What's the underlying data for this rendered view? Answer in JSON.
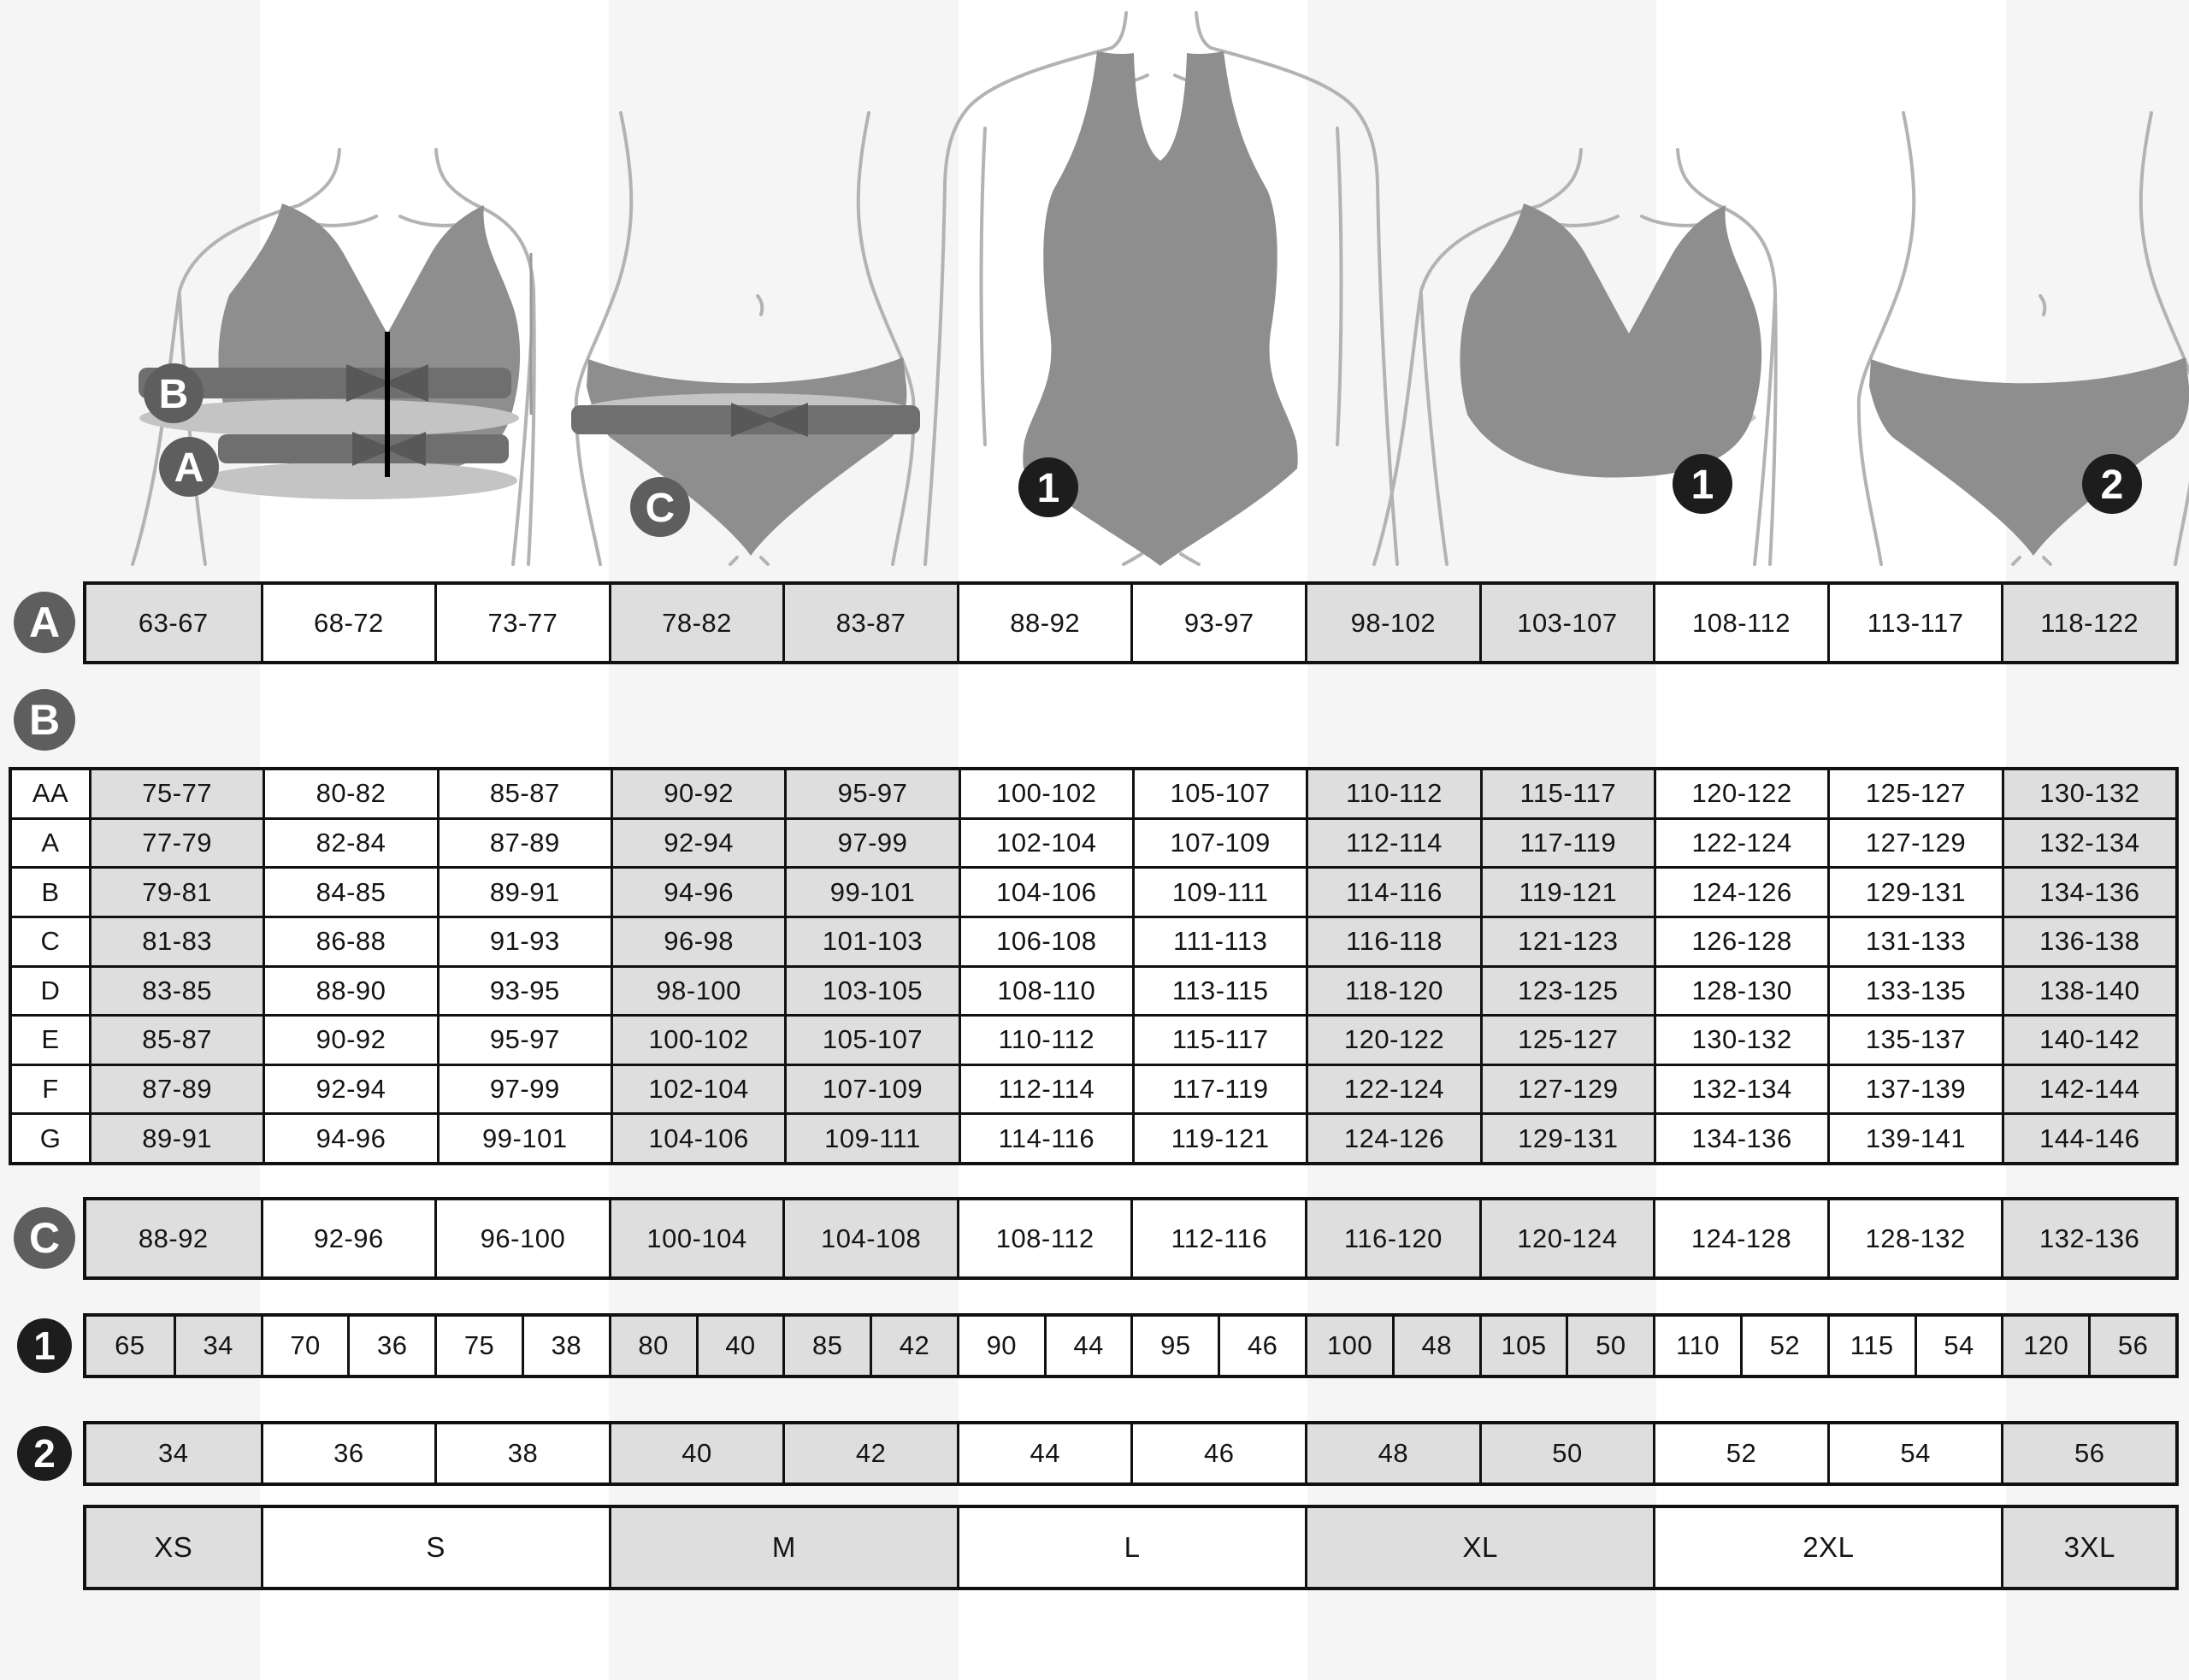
{
  "labels": {
    "a": "A",
    "b": "B",
    "c": "C",
    "n1": "1",
    "n2": "2"
  },
  "underbust_row": {
    "badge": "A",
    "values": [
      "63-67",
      "68-72",
      "73-77",
      "78-82",
      "83-87",
      "88-92",
      "93-97",
      "98-102",
      "103-107",
      "108-112",
      "113-117",
      "118-122"
    ]
  },
  "cup_table": {
    "badge": "B",
    "cups": [
      "AA",
      "A",
      "B",
      "C",
      "D",
      "E",
      "F",
      "G"
    ],
    "rows": [
      [
        "75-77",
        "80-82",
        "85-87",
        "90-92",
        "95-97",
        "100-102",
        "105-107",
        "110-112",
        "115-117",
        "120-122",
        "125-127",
        "130-132"
      ],
      [
        "77-79",
        "82-84",
        "87-89",
        "92-94",
        "97-99",
        "102-104",
        "107-109",
        "112-114",
        "117-119",
        "122-124",
        "127-129",
        "132-134"
      ],
      [
        "79-81",
        "84-85",
        "89-91",
        "94-96",
        "99-101",
        "104-106",
        "109-111",
        "114-116",
        "119-121",
        "124-126",
        "129-131",
        "134-136"
      ],
      [
        "81-83",
        "86-88",
        "91-93",
        "96-98",
        "101-103",
        "106-108",
        "111-113",
        "116-118",
        "121-123",
        "126-128",
        "131-133",
        "136-138"
      ],
      [
        "83-85",
        "88-90",
        "93-95",
        "98-100",
        "103-105",
        "108-110",
        "113-115",
        "118-120",
        "123-125",
        "128-130",
        "133-135",
        "138-140"
      ],
      [
        "85-87",
        "90-92",
        "95-97",
        "100-102",
        "105-107",
        "110-112",
        "115-117",
        "120-122",
        "125-127",
        "130-132",
        "135-137",
        "140-142"
      ],
      [
        "87-89",
        "92-94",
        "97-99",
        "102-104",
        "107-109",
        "112-114",
        "117-119",
        "122-124",
        "127-129",
        "132-134",
        "137-139",
        "142-144"
      ],
      [
        "89-91",
        "94-96",
        "99-101",
        "104-106",
        "109-111",
        "114-116",
        "119-121",
        "124-126",
        "129-131",
        "134-136",
        "139-141",
        "144-146"
      ]
    ]
  },
  "hip_row": {
    "badge": "C",
    "values": [
      "88-92",
      "92-96",
      "96-100",
      "100-104",
      "104-108",
      "108-112",
      "112-116",
      "116-120",
      "120-124",
      "124-128",
      "128-132",
      "132-136"
    ]
  },
  "band_cup_pairs_row": {
    "badge": "1",
    "pairs": [
      [
        "65",
        "34"
      ],
      [
        "70",
        "36"
      ],
      [
        "75",
        "38"
      ],
      [
        "80",
        "40"
      ],
      [
        "85",
        "42"
      ],
      [
        "90",
        "44"
      ],
      [
        "95",
        "46"
      ],
      [
        "100",
        "48"
      ],
      [
        "105",
        "50"
      ],
      [
        "110",
        "52"
      ],
      [
        "115",
        "54"
      ],
      [
        "120",
        "56"
      ]
    ]
  },
  "dress_size_row": {
    "badge": "2",
    "values": [
      "34",
      "36",
      "38",
      "40",
      "42",
      "44",
      "46",
      "48",
      "50",
      "52",
      "54",
      "56"
    ]
  },
  "intl_size_row": {
    "values": [
      "XS",
      "S",
      "M",
      "L",
      "XL",
      "2XL",
      "3XL"
    ],
    "spans": [
      1,
      2,
      2,
      2,
      2,
      2,
      1
    ]
  },
  "colors": {
    "cell_shaded": "#dedede",
    "table_border": "#111111",
    "badge_gray": "#5e5e5e",
    "badge_black": "#1d1d1d",
    "garment": "#8e8e8e",
    "measure_band": "#6f6f6f",
    "measure_highlight": "#c4c4c4",
    "body_outline": "#b3b3b3",
    "background_stripe": "#f5f5f5"
  }
}
